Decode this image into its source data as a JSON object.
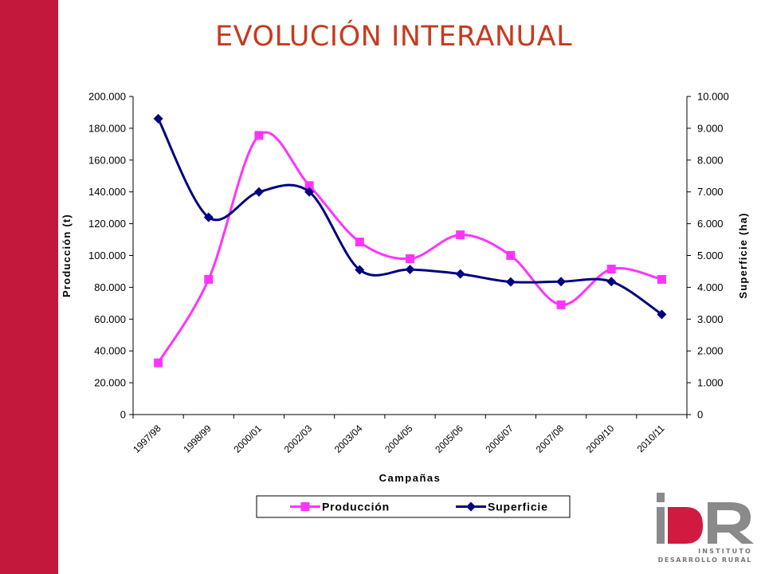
{
  "slide": {
    "title": "EVOLUCIÓN INTERANUAL",
    "accent_color": "#c4173c",
    "title_color": "#c83a1e"
  },
  "logo": {
    "letters": "IDR",
    "line1": "INSTITUTO",
    "line2": "DESARROLLO RURAL"
  },
  "chart_data": {
    "type": "line",
    "title": "",
    "xlabel": "Campañas",
    "ylabel": "Producción (t)",
    "y2label": "Superficie (ha)",
    "categories": [
      "1997/98",
      "1998/99",
      "2000/01",
      "2002/03",
      "2003/04",
      "2004/05",
      "2005/06",
      "2006/07",
      "2007/08",
      "2009/10",
      "2010/11"
    ],
    "ylim": [
      0,
      200000
    ],
    "y2lim": [
      0,
      10000
    ],
    "yticks": [
      "0",
      "20.000",
      "40.000",
      "60.000",
      "80.000",
      "100.000",
      "120.000",
      "140.000",
      "160.000",
      "180.000",
      "200.000"
    ],
    "y2ticks": [
      "0",
      "1.000",
      "2.000",
      "3.000",
      "4.000",
      "5.000",
      "6.000",
      "7.000",
      "8.000",
      "9.000",
      "10.000"
    ],
    "series": [
      {
        "name": "Producción",
        "axis": "left",
        "color": "#ff33ff",
        "marker": "square",
        "values": [
          32500,
          85000,
          175500,
          144000,
          108500,
          98000,
          113000,
          100000,
          69000,
          91500,
          85000
        ]
      },
      {
        "name": "Superficie",
        "axis": "right",
        "color": "#000080",
        "marker": "diamond",
        "values": [
          9300,
          6200,
          7000,
          7000,
          4550,
          4560,
          4420,
          4170,
          4180,
          4180,
          3150
        ]
      }
    ],
    "legend": "bottom"
  }
}
